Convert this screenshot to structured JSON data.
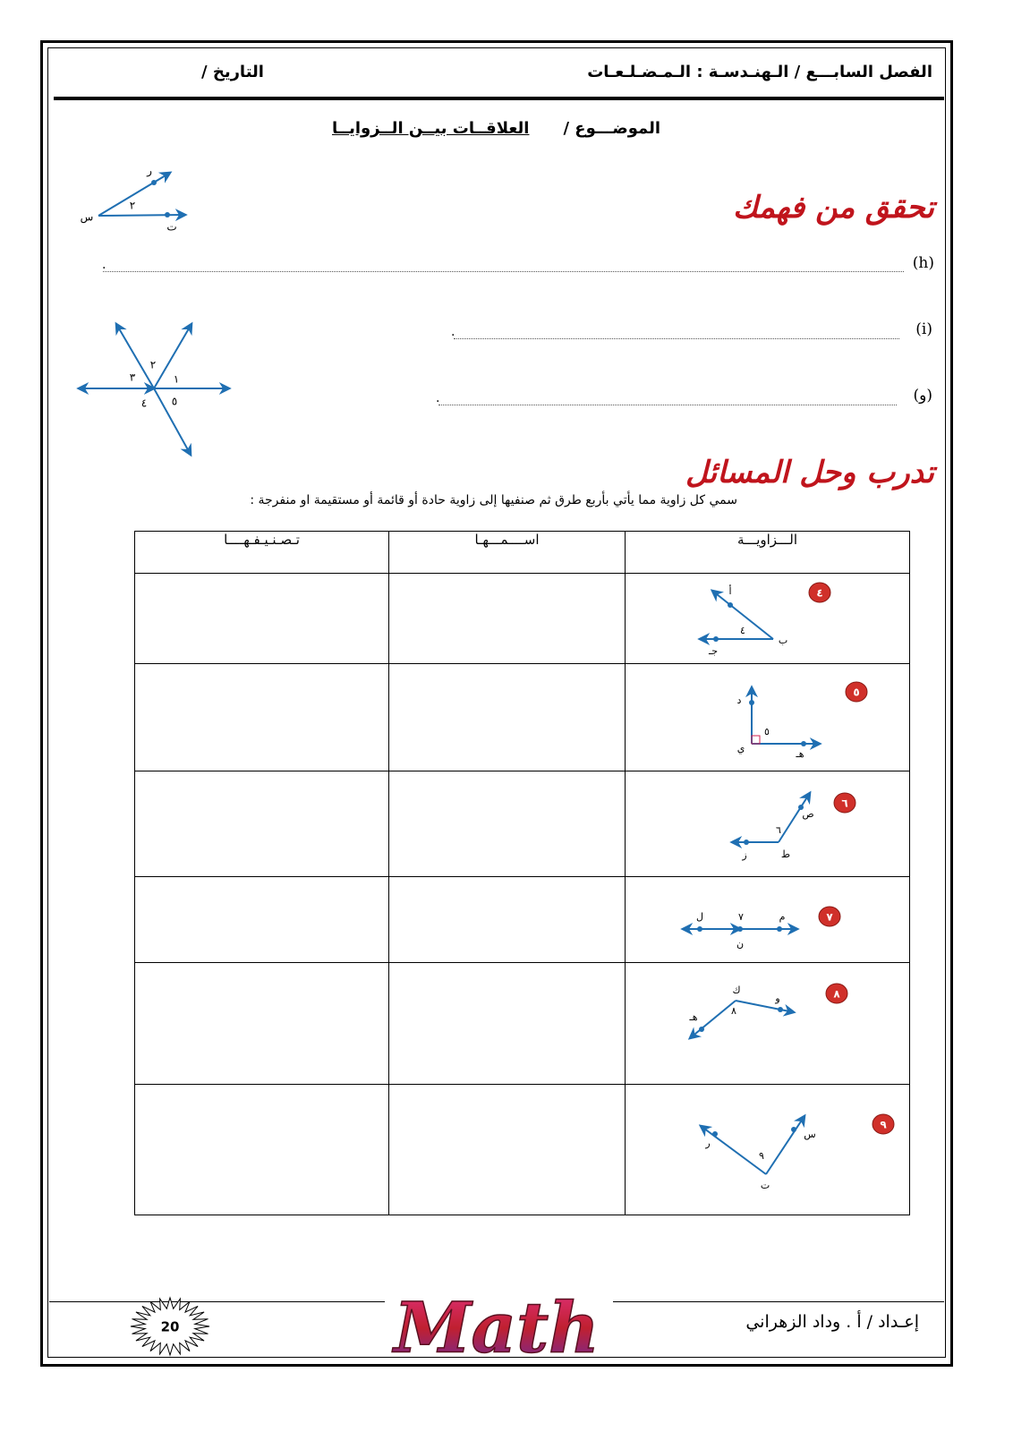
{
  "header": {
    "chapter": "الفصل السابـــع / الـهنـدسـة : الـمـضـلـعـات",
    "date": "التاريخ /"
  },
  "topic": {
    "label": "الموضـــوع /",
    "title": "العلاقــات بيــن الــزوايــا"
  },
  "check": {
    "heading": "تحقق من فهمك",
    "figure1": {
      "labels": [
        "ر",
        "٢",
        "س",
        "ت"
      ]
    },
    "items": [
      {
        "label": "(h)",
        "end": "."
      },
      {
        "label": "(i)",
        "end": "."
      },
      {
        "label": "(و)",
        "end": "."
      }
    ],
    "figure2": {
      "labels": [
        "٢",
        "٣",
        "١",
        "٤",
        "٥"
      ]
    }
  },
  "practice": {
    "heading": "تدرب وحل المسائل",
    "instruction": "سمي كل زاوية مما يأتي بأربع طرق ثم صنفيها إلى زاوية حادة أو قائمة أو مستقيمة او منفرجة :",
    "table": {
      "headers": [
        "الـــزاويـــة",
        "اســــمـــهـا",
        "تـصـنـيـفـهــــا"
      ],
      "rows": [
        {
          "number": "٤",
          "labels": [
            "أ",
            "ب",
            "جـ",
            "٤"
          ]
        },
        {
          "number": "٥",
          "labels": [
            "د",
            "ي",
            "هـ",
            "٥"
          ]
        },
        {
          "number": "٦",
          "labels": [
            "ص",
            "ط",
            "ز",
            "٦"
          ]
        },
        {
          "number": "٧",
          "labels": [
            "ل",
            "م",
            "ن",
            "٧"
          ]
        },
        {
          "number": "٨",
          "labels": [
            "ك",
            "و",
            "هـ",
            "٨"
          ]
        },
        {
          "number": "٩",
          "labels": [
            "س",
            "ر",
            "ت",
            "٩"
          ]
        }
      ]
    }
  },
  "footer": {
    "page": "20",
    "logo": "Math",
    "author": "إعـداد / أ . وداد الزهراني"
  }
}
